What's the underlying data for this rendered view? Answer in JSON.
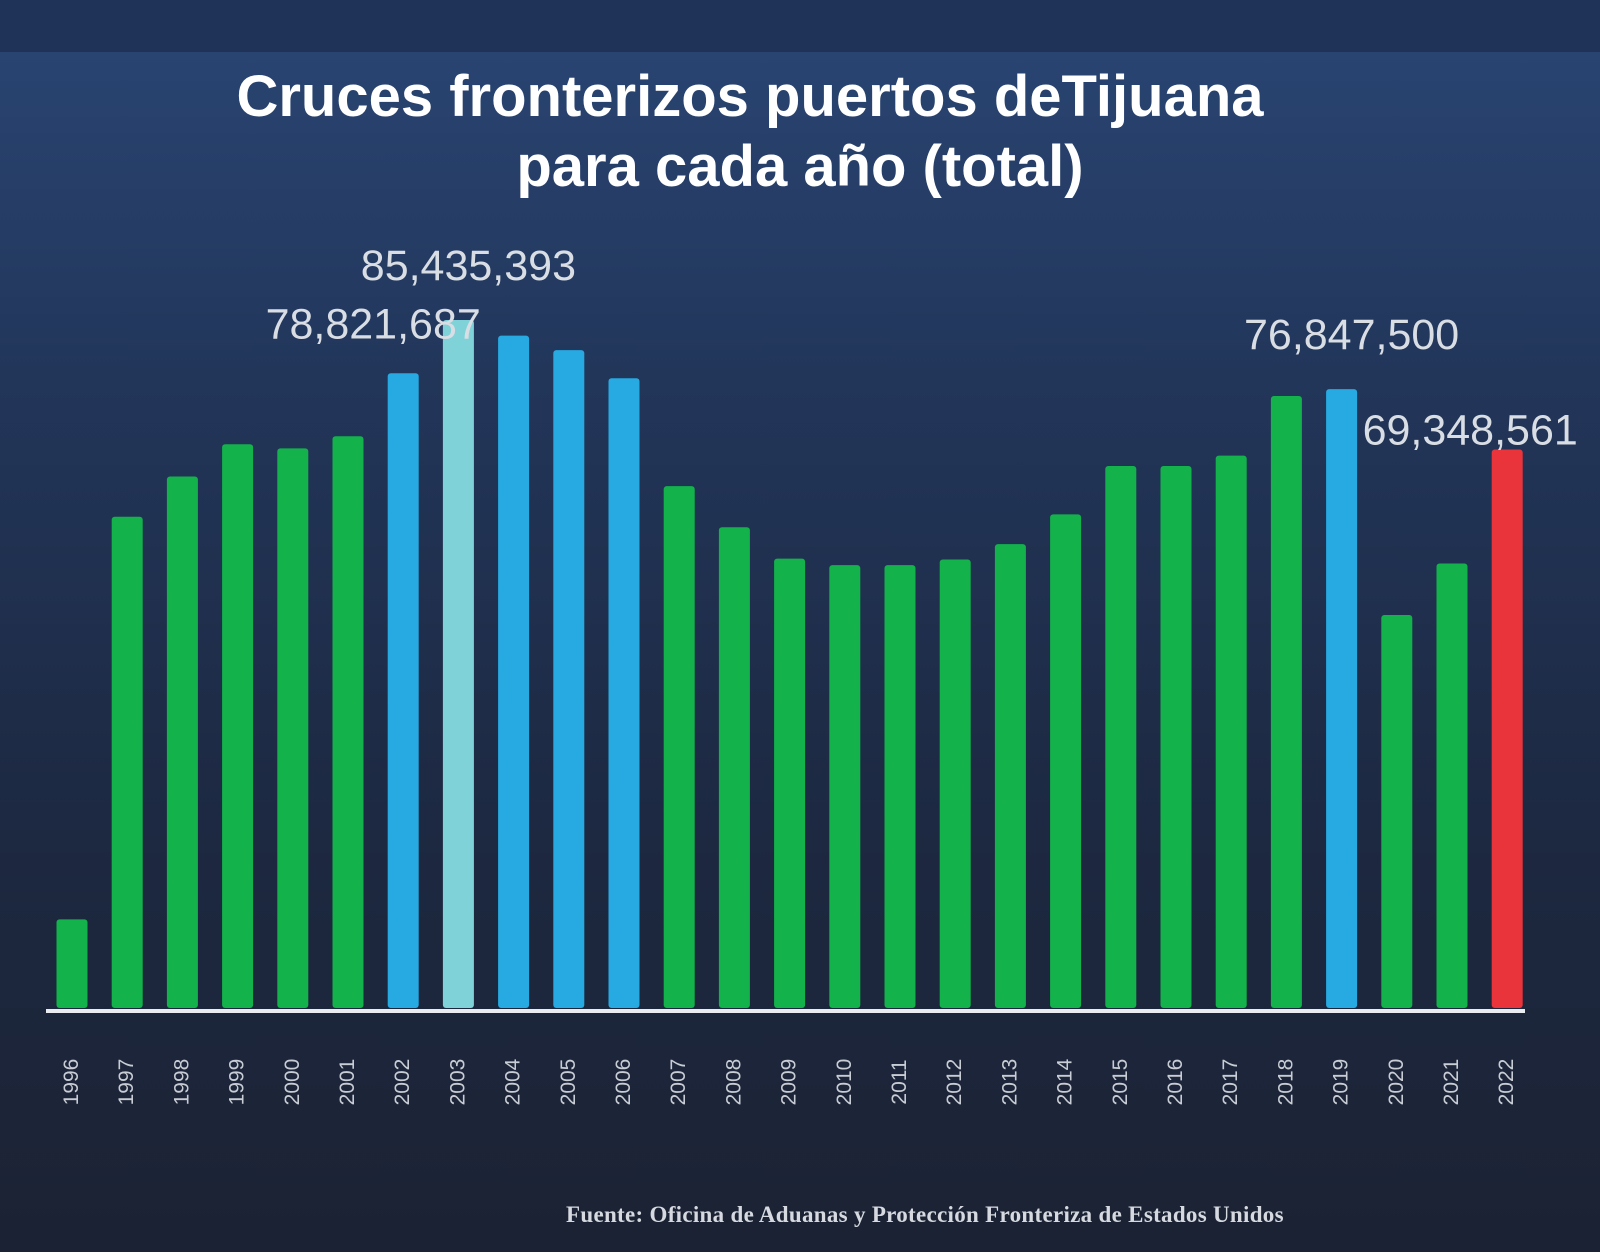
{
  "chart_data": {
    "type": "bar",
    "title_line1": "Cruces fronterizos puertos deTijuana",
    "title_line2": "para cada año (total)",
    "xlabel": "",
    "ylabel": "",
    "categories": [
      "1996",
      "1997",
      "1998",
      "1999",
      "2000",
      "2001",
      "2002",
      "2003",
      "2004",
      "2005",
      "2006",
      "2007",
      "2008",
      "2009",
      "2010",
      "2011",
      "2012",
      "2013",
      "2014",
      "2015",
      "2016",
      "2017",
      "2018",
      "2019",
      "2020",
      "2021",
      "2022"
    ],
    "values": [
      11000000,
      61000000,
      66000000,
      70000000,
      69500000,
      71000000,
      78821687,
      85435393,
      83500000,
      81700000,
      78200000,
      64800000,
      59700000,
      55800000,
      55000000,
      55000000,
      55700000,
      57600000,
      61300000,
      67300000,
      67300000,
      68600000,
      76000000,
      76847500,
      48800000,
      55200000,
      69348561
    ],
    "colors": [
      "#13b24b",
      "#13b24b",
      "#13b24b",
      "#13b24b",
      "#13b24b",
      "#13b24b",
      "#27a9e1",
      "#7fd3d8",
      "#27a9e1",
      "#27a9e1",
      "#27a9e1",
      "#13b24b",
      "#13b24b",
      "#13b24b",
      "#13b24b",
      "#13b24b",
      "#13b24b",
      "#13b24b",
      "#13b24b",
      "#13b24b",
      "#13b24b",
      "#13b24b",
      "#13b24b",
      "#27a9e1",
      "#13b24b",
      "#13b24b",
      "#e8343a"
    ],
    "data_labels": [
      {
        "index": 6,
        "text": "78,821,687"
      },
      {
        "index": 7,
        "text": "85,435,393"
      },
      {
        "index": 23,
        "text": "76,847,500"
      },
      {
        "index": 26,
        "text": "69,348,561"
      }
    ],
    "ylim": [
      0,
      85435393
    ],
    "grid": false,
    "legend": "none"
  },
  "source": "Fuente: Oficina de Aduanas y Protección Fronteriza de Estados Unidos",
  "colors": {
    "background_top": "#2a4675",
    "background_bottom": "#1b2233",
    "baseline": "#e9edf2"
  }
}
